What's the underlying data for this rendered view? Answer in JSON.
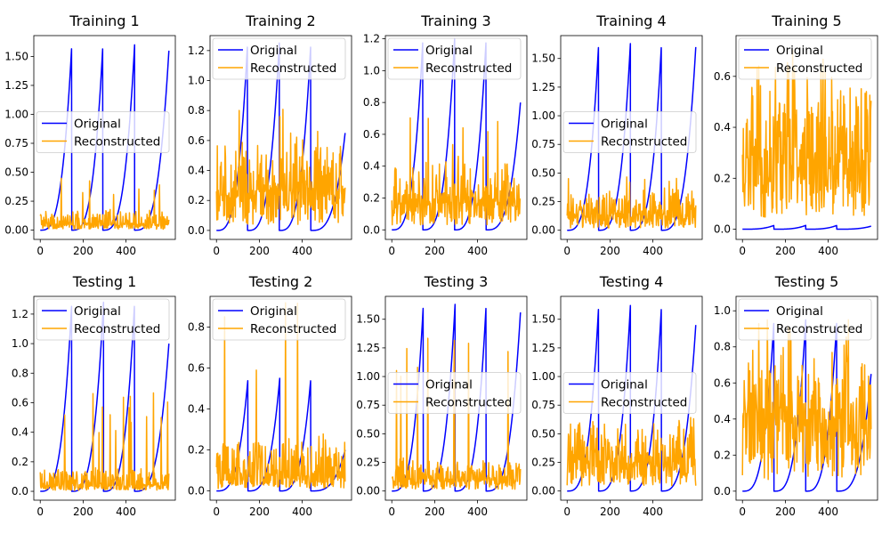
{
  "figure": {
    "colors": {
      "original": "#0000ff",
      "reconstructed": "#ffa500"
    }
  },
  "chart_data": [
    {
      "type": "line",
      "title": "Training 1",
      "xlim": [
        -30,
        630
      ],
      "ylim": [
        -0.08,
        1.68
      ],
      "xticks": [
        0,
        200,
        400
      ],
      "yticks": [
        0.0,
        0.25,
        0.5,
        0.75,
        1.0,
        1.25,
        1.5
      ],
      "ytick_labels": [
        "0.00",
        "0.25",
        "0.50",
        "0.75",
        "1.00",
        "1.25",
        "1.50"
      ],
      "legend": "center-left",
      "series": [
        {
          "name": "Original",
          "color": "#0000ff",
          "kind": "pulse",
          "peak": 1.6,
          "end_value": 1.55,
          "pulse_ends": [
            147,
            292,
            440
          ],
          "noise_floor": 0.0
        },
        {
          "name": "Reconstructed",
          "color": "#ffa500",
          "kind": "noise",
          "base": 0.04,
          "amp": 0.12,
          "spike_max": 0.45
        }
      ]
    },
    {
      "type": "line",
      "title": "Training 2",
      "xlim": [
        -30,
        630
      ],
      "ylim": [
        -0.06,
        1.3
      ],
      "xticks": [
        0,
        200,
        400
      ],
      "yticks": [
        0.0,
        0.2,
        0.4,
        0.6,
        0.8,
        1.0,
        1.2
      ],
      "ytick_labels": [
        "0.0",
        "0.2",
        "0.4",
        "0.6",
        "0.8",
        "1.0",
        "1.2"
      ],
      "legend": "upper-left",
      "series": [
        {
          "name": "Original",
          "color": "#0000ff",
          "kind": "pulse",
          "peak": 1.25,
          "end_value": 0.65,
          "pulse_ends": [
            145,
            293,
            440
          ],
          "noise_floor": 0.0
        },
        {
          "name": "Reconstructed",
          "color": "#ffa500",
          "kind": "noise",
          "base": 0.2,
          "amp": 0.35,
          "spike_max": 0.82
        }
      ]
    },
    {
      "type": "line",
      "title": "Training 3",
      "xlim": [
        -30,
        630
      ],
      "ylim": [
        -0.06,
        1.22
      ],
      "xticks": [
        0,
        200,
        400
      ],
      "yticks": [
        0.0,
        0.2,
        0.4,
        0.6,
        0.8,
        1.0,
        1.2
      ],
      "ytick_labels": [
        "0.0",
        "0.2",
        "0.4",
        "0.6",
        "0.8",
        "1.0",
        "1.2"
      ],
      "legend": "upper-left",
      "series": [
        {
          "name": "Original",
          "color": "#0000ff",
          "kind": "pulse",
          "peak": 1.2,
          "end_value": 0.8,
          "pulse_ends": [
            145,
            293,
            440
          ],
          "noise_floor": 0.0
        },
        {
          "name": "Reconstructed",
          "color": "#ffa500",
          "kind": "noise",
          "base": 0.15,
          "amp": 0.25,
          "spike_max": 0.72
        }
      ]
    },
    {
      "type": "line",
      "title": "Training 4",
      "xlim": [
        -30,
        630
      ],
      "ylim": [
        -0.08,
        1.7
      ],
      "xticks": [
        0,
        200,
        400
      ],
      "yticks": [
        0.0,
        0.25,
        0.5,
        0.75,
        1.0,
        1.25,
        1.5
      ],
      "ytick_labels": [
        "0.00",
        "0.25",
        "0.50",
        "0.75",
        "1.00",
        "1.25",
        "1.50"
      ],
      "legend": "center-left",
      "series": [
        {
          "name": "Original",
          "color": "#0000ff",
          "kind": "pulse",
          "peak": 1.63,
          "end_value": 1.6,
          "pulse_ends": [
            147,
            295,
            440
          ],
          "noise_floor": 0.0
        },
        {
          "name": "Reconstructed",
          "color": "#ffa500",
          "kind": "noise",
          "base": 0.1,
          "amp": 0.22,
          "spike_max": 0.5
        }
      ]
    },
    {
      "type": "line",
      "title": "Training 5",
      "xlim": [
        -30,
        630
      ],
      "ylim": [
        -0.04,
        0.76
      ],
      "xticks": [
        0,
        200,
        400
      ],
      "yticks": [
        0.0,
        0.2,
        0.4,
        0.6
      ],
      "ytick_labels": [
        "0.0",
        "0.2",
        "0.4",
        "0.6"
      ],
      "legend": "upper-left",
      "series": [
        {
          "name": "Original",
          "color": "#0000ff",
          "kind": "pulse",
          "peak": 0.015,
          "end_value": 0.012,
          "pulse_ends": [
            147,
            295,
            440
          ],
          "noise_floor": 0.0
        },
        {
          "name": "Reconstructed",
          "color": "#ffa500",
          "kind": "noise",
          "base": 0.22,
          "amp": 0.38,
          "spike_max": 0.73
        }
      ]
    },
    {
      "type": "line",
      "title": "Testing 1",
      "xlim": [
        -30,
        630
      ],
      "ylim": [
        -0.06,
        1.32
      ],
      "xticks": [
        0,
        200,
        400
      ],
      "yticks": [
        0.0,
        0.2,
        0.4,
        0.6,
        0.8,
        1.0,
        1.2
      ],
      "ytick_labels": [
        "0.0",
        "0.2",
        "0.4",
        "0.6",
        "0.8",
        "1.0",
        "1.2"
      ],
      "legend": "upper-left",
      "series": [
        {
          "name": "Original",
          "color": "#0000ff",
          "kind": "pulse",
          "peak": 1.28,
          "end_value": 1.0,
          "pulse_ends": [
            147,
            295,
            440
          ],
          "noise_floor": 0.0
        },
        {
          "name": "Reconstructed",
          "color": "#ffa500",
          "kind": "noise",
          "base": 0.03,
          "amp": 0.12,
          "spike_max": 0.72
        }
      ]
    },
    {
      "type": "line",
      "title": "Testing 2",
      "xlim": [
        -30,
        630
      ],
      "ylim": [
        -0.045,
        0.95
      ],
      "xticks": [
        0,
        200,
        400
      ],
      "yticks": [
        0.0,
        0.2,
        0.4,
        0.6,
        0.8
      ],
      "ytick_labels": [
        "0.0",
        "0.2",
        "0.4",
        "0.6",
        "0.8"
      ],
      "legend": "upper-left",
      "series": [
        {
          "name": "Original",
          "color": "#0000ff",
          "kind": "pulse",
          "peak": 0.55,
          "end_value": 0.2,
          "pulse_ends": [
            147,
            295,
            440
          ],
          "noise_floor": 0.0
        },
        {
          "name": "Reconstructed",
          "color": "#ffa500",
          "kind": "noise",
          "base": 0.06,
          "amp": 0.2,
          "spike_max": 0.92
        }
      ]
    },
    {
      "type": "line",
      "title": "Testing 3",
      "xlim": [
        -30,
        630
      ],
      "ylim": [
        -0.08,
        1.7
      ],
      "xticks": [
        0,
        200,
        400
      ],
      "yticks": [
        0.0,
        0.25,
        0.5,
        0.75,
        1.0,
        1.25,
        1.5
      ],
      "ytick_labels": [
        "0.00",
        "0.25",
        "0.50",
        "0.75",
        "1.00",
        "1.25",
        "1.50"
      ],
      "legend": "center-left",
      "series": [
        {
          "name": "Original",
          "color": "#0000ff",
          "kind": "pulse",
          "peak": 1.63,
          "end_value": 1.56,
          "pulse_ends": [
            147,
            295,
            440
          ],
          "noise_floor": 0.0
        },
        {
          "name": "Reconstructed",
          "color": "#ffa500",
          "kind": "noise",
          "base": 0.08,
          "amp": 0.18,
          "spike_max": 1.35
        }
      ]
    },
    {
      "type": "line",
      "title": "Testing 4",
      "xlim": [
        -30,
        630
      ],
      "ylim": [
        -0.08,
        1.7
      ],
      "xticks": [
        0,
        200,
        400
      ],
      "yticks": [
        0.0,
        0.25,
        0.5,
        0.75,
        1.0,
        1.25,
        1.5
      ],
      "ytick_labels": [
        "0.00",
        "0.25",
        "0.50",
        "0.75",
        "1.00",
        "1.25",
        "1.50"
      ],
      "legend": "center-left",
      "series": [
        {
          "name": "Original",
          "color": "#0000ff",
          "kind": "pulse",
          "peak": 1.62,
          "end_value": 1.45,
          "pulse_ends": [
            147,
            295,
            440
          ],
          "noise_floor": 0.0
        },
        {
          "name": "Reconstructed",
          "color": "#ffa500",
          "kind": "noise",
          "base": 0.22,
          "amp": 0.32,
          "spike_max": 0.65
        }
      ]
    },
    {
      "type": "line",
      "title": "Testing 5",
      "xlim": [
        -30,
        630
      ],
      "ylim": [
        -0.05,
        1.08
      ],
      "xticks": [
        0,
        200,
        400
      ],
      "yticks": [
        0.0,
        0.2,
        0.4,
        0.6,
        0.8,
        1.0
      ],
      "ytick_labels": [
        "0.0",
        "0.2",
        "0.4",
        "0.6",
        "0.8",
        "1.0"
      ],
      "legend": "upper-left",
      "series": [
        {
          "name": "Original",
          "color": "#0000ff",
          "kind": "pulse",
          "peak": 0.95,
          "end_value": 0.65,
          "pulse_ends": [
            147,
            295,
            440
          ],
          "noise_floor": 0.0
        },
        {
          "name": "Reconstructed",
          "color": "#ffa500",
          "kind": "noise",
          "base": 0.32,
          "amp": 0.38,
          "spike_max": 0.98
        }
      ]
    }
  ]
}
